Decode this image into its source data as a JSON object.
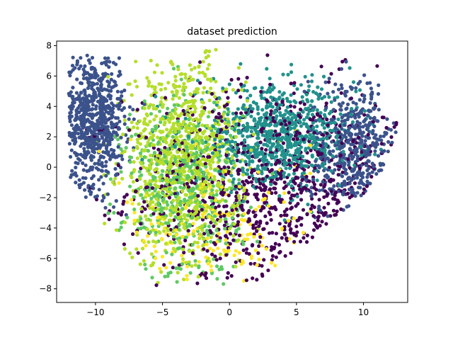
{
  "chart_data": {
    "type": "scatter",
    "title": "dataset prediction",
    "xlabel": "",
    "ylabel": "",
    "xlim": [
      -12.9,
      13.3
    ],
    "ylim": [
      -8.9,
      8.3
    ],
    "xticks": [
      -10,
      -5,
      0,
      5,
      10
    ],
    "xtick_labels": [
      "−10",
      "−5",
      "0",
      "5",
      "10"
    ],
    "yticks": [
      -8,
      -6,
      -4,
      -2,
      0,
      2,
      4,
      6,
      8
    ],
    "ytick_labels": [
      "−8",
      "−6",
      "−4",
      "−2",
      "0",
      "2",
      "4",
      "6",
      "8"
    ],
    "grid": false,
    "legend": "none",
    "colormap": [
      "#440154",
      "#3b528b",
      "#21918c",
      "#5ec962",
      "#b5de2b",
      "#fde725"
    ],
    "clusters": [
      {
        "name": "dark purple",
        "color": "#440154",
        "center": [
          3.5,
          -1.5
        ],
        "spread": [
          5.5,
          3.5
        ],
        "count": 900
      },
      {
        "name": "indigo (left)",
        "color": "#3b528b",
        "center": [
          -10.2,
          3.2
        ],
        "spread": [
          1.2,
          2.2
        ],
        "count": 700
      },
      {
        "name": "indigo (right)",
        "color": "#3b528b",
        "center": [
          9.5,
          1.0
        ],
        "spread": [
          1.8,
          2.5
        ],
        "count": 450
      },
      {
        "name": "teal",
        "color": "#21918c",
        "center": [
          3.5,
          2.0
        ],
        "spread": [
          3.0,
          1.6
        ],
        "count": 800
      },
      {
        "name": "green",
        "color": "#5ec962",
        "center": [
          -3.5,
          -1.5
        ],
        "spread": [
          2.2,
          3.0
        ],
        "count": 500
      },
      {
        "name": "yellow-green",
        "color": "#b5de2b",
        "center": [
          -3.5,
          0.5
        ],
        "spread": [
          2.2,
          3.4
        ],
        "count": 900
      },
      {
        "name": "yellow",
        "color": "#fde725",
        "center": [
          -1.0,
          -4.0
        ],
        "spread": [
          3.5,
          2.5
        ],
        "count": 180
      }
    ]
  }
}
